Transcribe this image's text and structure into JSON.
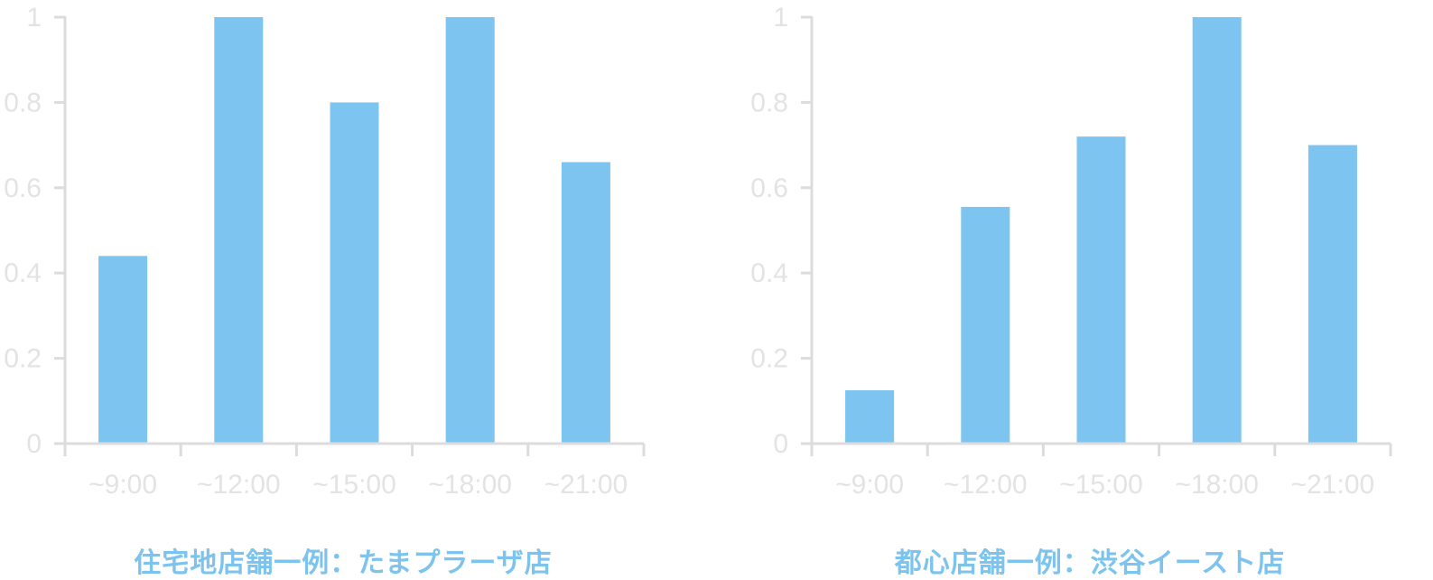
{
  "colors": {
    "bar": "#7ec4f0",
    "axis": "#dcdcdc",
    "tick_label": "#e3e3e3",
    "caption": "#7cc3ee"
  },
  "chart_data": [
    {
      "type": "bar",
      "title": "住宅地店舗一例：たまプラーザ店",
      "categories": [
        "~9:00",
        "~12:00",
        "~15:00",
        "~18:00",
        "~21:00"
      ],
      "values": [
        0.44,
        1.0,
        0.8,
        1.0,
        0.66
      ],
      "ylim": [
        0,
        1
      ],
      "yticks": [
        "0",
        "0.2",
        "0.4",
        "0.6",
        "0.8",
        "1"
      ],
      "grid": false,
      "xlabel": "",
      "ylabel": ""
    },
    {
      "type": "bar",
      "title": "都心店舗一例：渋谷イースト店",
      "categories": [
        "~9:00",
        "~12:00",
        "~15:00",
        "~18:00",
        "~21:00"
      ],
      "values": [
        0.125,
        0.555,
        0.72,
        1.0,
        0.7
      ],
      "ylim": [
        0,
        1
      ],
      "yticks": [
        "0",
        "0.2",
        "0.4",
        "0.6",
        "0.8",
        "1"
      ],
      "grid": false,
      "xlabel": "",
      "ylabel": ""
    }
  ]
}
